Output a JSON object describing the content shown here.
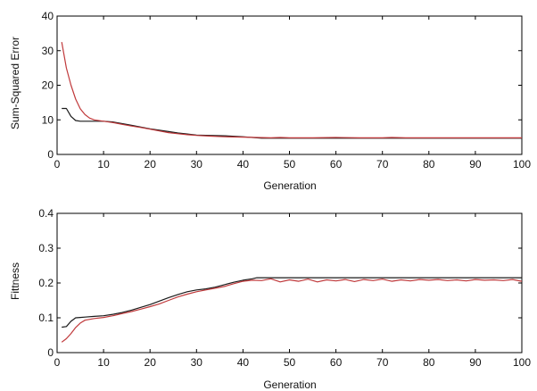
{
  "chart_data": [
    {
      "type": "line",
      "xlabel": "Generation",
      "ylabel": "Sum-Squared Error",
      "xlim": [
        0,
        100
      ],
      "ylim": [
        0,
        40
      ],
      "xticks": [
        "0",
        "10",
        "20",
        "30",
        "40",
        "50",
        "60",
        "70",
        "80",
        "90",
        "100"
      ],
      "yticks": [
        "0",
        "10",
        "20",
        "30",
        "40"
      ],
      "grid": false,
      "series": [
        {
          "color": "#1a1a1a",
          "x": [
            1,
            2,
            3,
            4,
            5,
            7,
            10,
            12,
            14,
            16,
            18,
            20,
            22,
            24,
            26,
            28,
            30,
            33,
            36,
            40,
            42,
            44,
            50,
            60,
            70,
            80,
            90,
            100
          ],
          "y": [
            13.3,
            13.3,
            11.0,
            9.8,
            9.6,
            9.6,
            9.6,
            9.4,
            8.9,
            8.4,
            7.9,
            7.4,
            7.0,
            6.6,
            6.2,
            5.9,
            5.6,
            5.5,
            5.4,
            5.1,
            4.9,
            4.7,
            4.7,
            4.7,
            4.7,
            4.7,
            4.7,
            4.7
          ]
        },
        {
          "color": "#c0393b",
          "x": [
            1,
            2,
            3,
            4,
            5,
            6,
            7,
            8,
            10,
            12,
            14,
            16,
            18,
            20,
            22,
            24,
            26,
            28,
            30,
            33,
            36,
            40,
            43,
            46,
            48,
            50,
            55,
            60,
            65,
            70,
            72,
            75,
            80,
            90,
            100
          ],
          "y": [
            32.5,
            25.0,
            20.0,
            16.0,
            13.2,
            11.5,
            10.5,
            10.0,
            9.6,
            9.2,
            8.7,
            8.2,
            7.8,
            7.3,
            6.8,
            6.3,
            6.0,
            5.7,
            5.5,
            5.3,
            5.1,
            5.0,
            4.9,
            4.8,
            4.9,
            4.8,
            4.8,
            4.9,
            4.8,
            4.8,
            4.9,
            4.8,
            4.8,
            4.8,
            4.8
          ]
        }
      ]
    },
    {
      "type": "line",
      "xlabel": "Generation",
      "ylabel": "Fittness",
      "xlim": [
        0,
        100
      ],
      "ylim": [
        0,
        0.4
      ],
      "xticks": [
        "0",
        "10",
        "20",
        "30",
        "40",
        "50",
        "60",
        "70",
        "80",
        "90",
        "100"
      ],
      "yticks": [
        "0",
        "0.1",
        "0.2",
        "0.3",
        "0.4"
      ],
      "grid": false,
      "series": [
        {
          "color": "#1a1a1a",
          "x": [
            1,
            2,
            3,
            4,
            5,
            6,
            8,
            10,
            12,
            14,
            16,
            18,
            20,
            22,
            24,
            26,
            28,
            30,
            32,
            34,
            36,
            38,
            40,
            42,
            43,
            44,
            50,
            60,
            70,
            80,
            90,
            100
          ],
          "y": [
            0.073,
            0.075,
            0.09,
            0.1,
            0.101,
            0.102,
            0.104,
            0.106,
            0.11,
            0.115,
            0.122,
            0.13,
            0.138,
            0.148,
            0.158,
            0.167,
            0.175,
            0.18,
            0.183,
            0.188,
            0.195,
            0.202,
            0.208,
            0.212,
            0.215,
            0.215,
            0.215,
            0.215,
            0.215,
            0.215,
            0.215,
            0.215
          ]
        },
        {
          "color": "#c0393b",
          "x": [
            1,
            2,
            3,
            4,
            5,
            6,
            8,
            10,
            12,
            14,
            16,
            18,
            20,
            22,
            24,
            26,
            28,
            30,
            32,
            34,
            36,
            38,
            40,
            42,
            44,
            46,
            48,
            50,
            52,
            54,
            56,
            58,
            60,
            62,
            64,
            66,
            68,
            70,
            72,
            74,
            76,
            78,
            80,
            82,
            84,
            86,
            88,
            90,
            92,
            94,
            96,
            98,
            100
          ],
          "y": [
            0.03,
            0.04,
            0.055,
            0.072,
            0.085,
            0.093,
            0.098,
            0.101,
            0.106,
            0.112,
            0.118,
            0.125,
            0.132,
            0.14,
            0.15,
            0.16,
            0.168,
            0.175,
            0.18,
            0.185,
            0.19,
            0.198,
            0.205,
            0.208,
            0.207,
            0.212,
            0.203,
            0.209,
            0.205,
            0.211,
            0.203,
            0.209,
            0.206,
            0.21,
            0.204,
            0.21,
            0.207,
            0.211,
            0.205,
            0.209,
            0.206,
            0.21,
            0.208,
            0.21,
            0.207,
            0.209,
            0.206,
            0.21,
            0.208,
            0.209,
            0.207,
            0.21,
            0.205
          ]
        }
      ]
    }
  ]
}
